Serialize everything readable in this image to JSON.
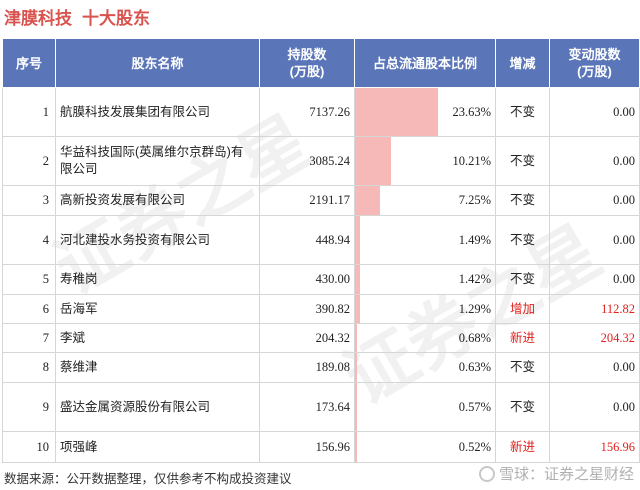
{
  "title": {
    "company": "津膜科技",
    "subtitle": "十大股东"
  },
  "columns": {
    "index": "序号",
    "name": "股东名称",
    "shares": "持股数\n(万股)",
    "ratio": "占总流通股本比例",
    "change": "增减",
    "change_shares": "变动股数\n(万股)"
  },
  "rows": [
    {
      "index": "1",
      "name": "航膜科技发展集团有限公司",
      "shares": "7137.26",
      "ratio": "23.63%",
      "ratio_value": 23.63,
      "change": "不变",
      "change_shares": "0.00",
      "highlight": false
    },
    {
      "index": "2",
      "name": "华益科技国际(英属维尔京群岛)有限公司",
      "shares": "3085.24",
      "ratio": "10.21%",
      "ratio_value": 10.21,
      "change": "不变",
      "change_shares": "0.00",
      "highlight": false
    },
    {
      "index": "3",
      "name": "高新投资发展有限公司",
      "shares": "2191.17",
      "ratio": "7.25%",
      "ratio_value": 7.25,
      "change": "不变",
      "change_shares": "0.00",
      "highlight": false
    },
    {
      "index": "4",
      "name": "河北建投水务投资有限公司",
      "shares": "448.94",
      "ratio": "1.49%",
      "ratio_value": 1.49,
      "change": "不变",
      "change_shares": "0.00",
      "highlight": false
    },
    {
      "index": "5",
      "name": "寿稚岗",
      "shares": "430.00",
      "ratio": "1.42%",
      "ratio_value": 1.42,
      "change": "不变",
      "change_shares": "0.00",
      "highlight": false
    },
    {
      "index": "6",
      "name": "岳海军",
      "shares": "390.82",
      "ratio": "1.29%",
      "ratio_value": 1.29,
      "change": "增加",
      "change_shares": "112.82",
      "highlight": true
    },
    {
      "index": "7",
      "name": "李斌",
      "shares": "204.32",
      "ratio": "0.68%",
      "ratio_value": 0.68,
      "change": "新进",
      "change_shares": "204.32",
      "highlight": true
    },
    {
      "index": "8",
      "name": "蔡维津",
      "shares": "189.08",
      "ratio": "0.63%",
      "ratio_value": 0.63,
      "change": "不变",
      "change_shares": "0.00",
      "highlight": false
    },
    {
      "index": "9",
      "name": "盛达金属资源股份有限公司",
      "shares": "173.64",
      "ratio": "0.57%",
      "ratio_value": 0.57,
      "change": "不变",
      "change_shares": "0.00",
      "highlight": false
    },
    {
      "index": "10",
      "name": "项强峰",
      "shares": "156.96",
      "ratio": "0.52%",
      "ratio_value": 0.52,
      "change": "新进",
      "change_shares": "156.96",
      "highlight": true
    }
  ],
  "footer": {
    "source": "数据来源：公开数据整理，仅供参考不构成投资建议"
  },
  "brand": {
    "text": "雪球：证券之星财经"
  },
  "watermark": {
    "text": "证券之星"
  },
  "colors": {
    "header_bg": "#5b76b8",
    "title": "#d9534f",
    "bar": "#f6b9b7",
    "highlight": "#e2211c"
  }
}
